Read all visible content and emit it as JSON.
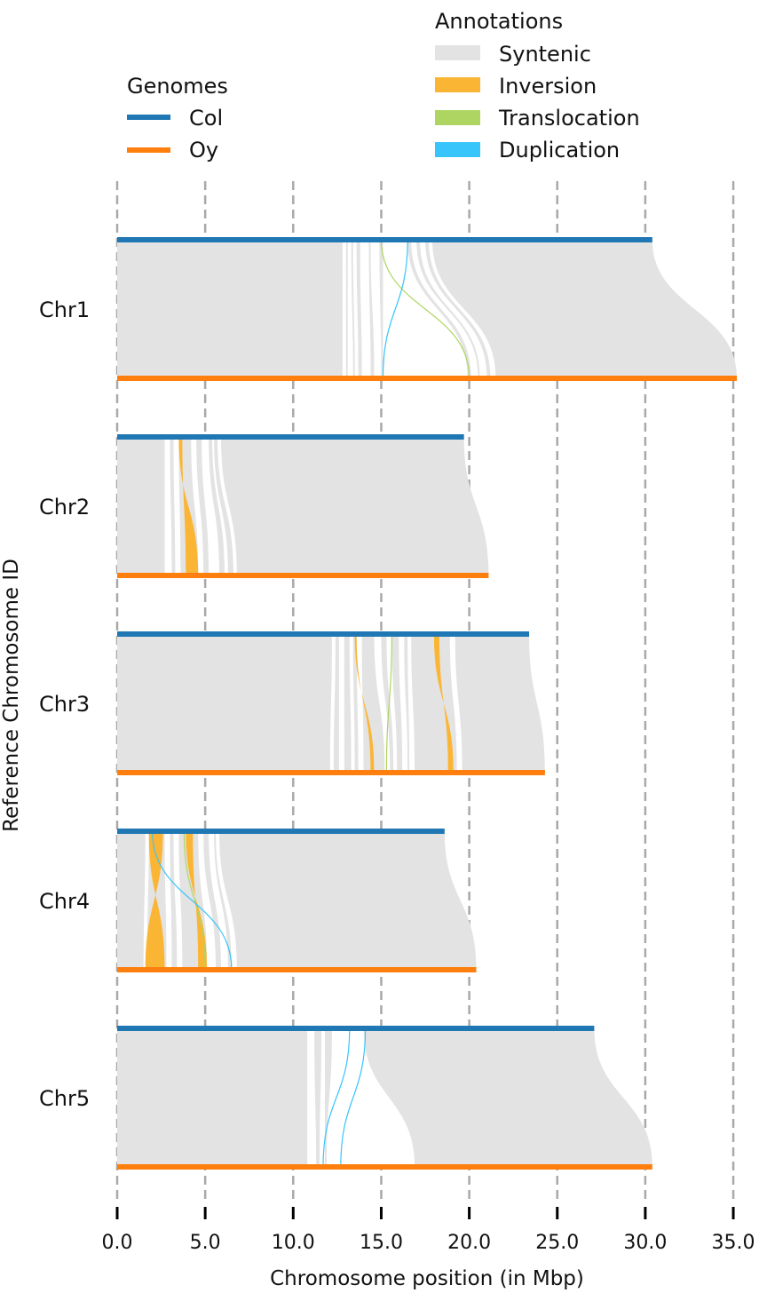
{
  "chart_data": {
    "type": "synteny",
    "xlabel": "Chromosome position (in Mbp)",
    "ylabel": "Reference Chromosome ID",
    "xlim": [
      0,
      35
    ],
    "xticks": [
      "0.0",
      "5.0",
      "10.0",
      "15.0",
      "20.0",
      "25.0",
      "30.0",
      "35.0"
    ],
    "grid": "vertical dashed",
    "genomes_legend": {
      "title": "Genomes",
      "items": [
        {
          "name": "Col",
          "color": "#1f77b4"
        },
        {
          "name": "Oy",
          "color": "#ff7f0e"
        }
      ]
    },
    "annotations_legend": {
      "title": "Annotations",
      "items": [
        {
          "name": "Syntenic",
          "color": "#e3e3e3"
        },
        {
          "name": "Inversion",
          "color": "#fbb534"
        },
        {
          "name": "Translocation",
          "color": "#aed561"
        },
        {
          "name": "Duplication",
          "color": "#38c5fb"
        }
      ]
    },
    "chromosomes": [
      {
        "id": "Chr1",
        "col_length": 30.4,
        "oy_length": 35.2,
        "gaps": [
          [
            12.8,
            13.0,
            12.8,
            13.0
          ],
          [
            13.1,
            13.3,
            13.1,
            13.4
          ],
          [
            13.4,
            13.6,
            13.5,
            13.7
          ],
          [
            13.8,
            14.3,
            13.9,
            14.4
          ],
          [
            14.4,
            14.9,
            14.6,
            15.0
          ],
          [
            15.1,
            16.5,
            15.1,
            19.9
          ],
          [
            16.7,
            17.0,
            20.1,
            20.5
          ],
          [
            17.2,
            17.5,
            20.6,
            21.0
          ],
          [
            17.7,
            17.9,
            21.2,
            21.5
          ]
        ],
        "inversions": [],
        "translocations": [
          [
            15.0,
            20.0
          ]
        ],
        "duplications": [
          [
            16.5,
            15.1
          ]
        ]
      },
      {
        "id": "Chr2",
        "col_length": 19.7,
        "oy_length": 21.1,
        "gaps": [
          [
            2.7,
            3.0,
            2.7,
            3.1
          ],
          [
            3.2,
            3.5,
            3.3,
            3.6
          ],
          [
            4.2,
            4.5,
            4.6,
            4.9
          ],
          [
            4.8,
            5.2,
            5.2,
            5.8
          ],
          [
            5.4,
            5.5,
            6.1,
            6.3
          ],
          [
            5.7,
            5.9,
            6.6,
            6.8
          ]
        ],
        "inversions": [
          [
            3.5,
            3.7,
            3.9,
            4.6
          ]
        ],
        "translocations": [],
        "duplications": []
      },
      {
        "id": "Chr3",
        "col_length": 23.4,
        "oy_length": 24.3,
        "gaps": [
          [
            12.2,
            12.4,
            12.1,
            12.3
          ],
          [
            12.6,
            12.9,
            12.6,
            12.9
          ],
          [
            13.2,
            13.4,
            13.3,
            13.5
          ],
          [
            13.6,
            13.9,
            13.7,
            14.0
          ],
          [
            14.6,
            15.0,
            15.2,
            15.5
          ],
          [
            15.3,
            15.6,
            15.7,
            15.9
          ],
          [
            16.0,
            16.3,
            16.2,
            16.5
          ],
          [
            16.5,
            16.7,
            16.6,
            16.9
          ],
          [
            18.9,
            19.2,
            19.3,
            19.6
          ]
        ],
        "inversions": [
          [
            13.5,
            13.6,
            14.4,
            14.6
          ],
          [
            18.0,
            18.3,
            18.8,
            19.1
          ]
        ],
        "translocations": [
          [
            15.6,
            15.3
          ]
        ],
        "duplications": []
      },
      {
        "id": "Chr4",
        "col_length": 18.6,
        "oy_length": 20.4,
        "gaps": [
          [
            1.6,
            1.8,
            1.5,
            1.7
          ],
          [
            2.7,
            3.0,
            2.8,
            3.1
          ],
          [
            3.2,
            3.5,
            3.4,
            3.7
          ],
          [
            4.6,
            4.9,
            5.1,
            5.6
          ],
          [
            5.2,
            5.5,
            5.9,
            6.3
          ],
          [
            5.6,
            5.8,
            6.5,
            6.8
          ]
        ],
        "inversions": [
          [
            1.8,
            2.6,
            1.6,
            2.7
          ],
          [
            3.9,
            4.3,
            4.6,
            5.1
          ]
        ],
        "translocations": [
          [
            3.8,
            5.0
          ]
        ],
        "duplications": [
          [
            2.0,
            6.5
          ]
        ]
      },
      {
        "id": "Chr5",
        "col_length": 27.1,
        "oy_length": 30.4,
        "gaps": [
          [
            10.8,
            11.2,
            10.8,
            11.3
          ],
          [
            11.6,
            11.8,
            11.5,
            11.8
          ],
          [
            12.2,
            14.0,
            11.9,
            16.9
          ]
        ],
        "inversions": [],
        "translocations": [],
        "duplications": [
          [
            13.2,
            11.7
          ],
          [
            14.1,
            12.7
          ]
        ]
      }
    ]
  }
}
